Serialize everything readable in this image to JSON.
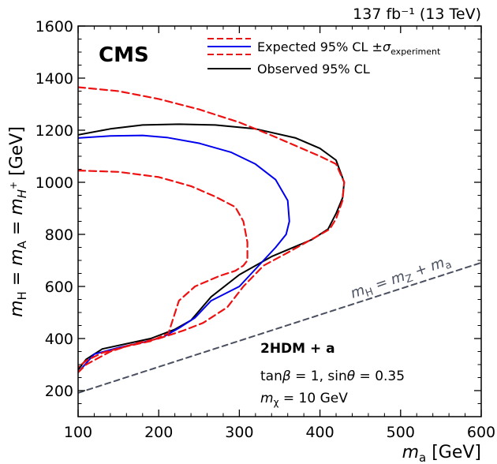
{
  "chart_data": {
    "type": "line",
    "top_label": "137 fb⁻¹ (13 TeV)",
    "experiment_label": "CMS",
    "xlabel": "mₐ [GeV]",
    "ylabel": "m_H = m_A = m_H⁺ [GeV]",
    "xlim": [
      100,
      600
    ],
    "ylim": [
      100,
      1600
    ],
    "xticks": [
      100,
      200,
      300,
      400,
      500,
      600
    ],
    "yticks": [
      200,
      400,
      600,
      800,
      1000,
      1200,
      1400,
      1600
    ],
    "legend_position": "top-right",
    "legend": {
      "expected": "Expected 95% CL ±σexperiment",
      "observed": "Observed 95% CL"
    },
    "annotations": {
      "model": "2HDM + a",
      "params_line1": "tanβ = 1, sinθ = 0.35",
      "params_line2": "mχ = 10 GeV",
      "diagonal_label": "m_H = m_Z + m_a"
    },
    "colors": {
      "observed": "#000000",
      "expected": "#0000ee",
      "band": "#ee1111",
      "diagonal": "#4a5060"
    },
    "series": [
      {
        "id": "observed",
        "style": "solid",
        "x": [
          100,
          140,
          180,
          225,
          270,
          320,
          370,
          400,
          420,
          430,
          428,
          420,
          410,
          390,
          340,
          300,
          265,
          240,
          220,
          190,
          160,
          130,
          110,
          100
        ],
        "y": [
          1182,
          1205,
          1220,
          1223,
          1220,
          1205,
          1170,
          1130,
          1085,
          1000,
          940,
          880,
          820,
          780,
          715,
          645,
          560,
          470,
          435,
          400,
          380,
          360,
          320,
          280
        ]
      },
      {
        "id": "expected",
        "style": "solid",
        "x": [
          100,
          140,
          180,
          210,
          250,
          290,
          320,
          345,
          360,
          362,
          358,
          345,
          300,
          265,
          245,
          225,
          205,
          180,
          150,
          120,
          100
        ],
        "y": [
          1170,
          1178,
          1180,
          1172,
          1150,
          1115,
          1070,
          1010,
          930,
          850,
          800,
          750,
          600,
          545,
          480,
          440,
          405,
          385,
          365,
          340,
          270
        ]
      },
      {
        "id": "expected_plus1sigma",
        "style": "dashed",
        "x": [
          100,
          150,
          200,
          250,
          300,
          340,
          370,
          400,
          420,
          430,
          428,
          420,
          412,
          395,
          360,
          330,
          305,
          285,
          255,
          230,
          200,
          170,
          140,
          110,
          100
        ],
        "y": [
          1365,
          1350,
          1320,
          1280,
          1230,
          1180,
          1140,
          1100,
          1070,
          1000,
          930,
          860,
          820,
          790,
          730,
          680,
          600,
          520,
          460,
          430,
          400,
          380,
          350,
          300,
          270
        ]
      },
      {
        "id": "expected_minus1sigma",
        "style": "dashed",
        "x": [
          100,
          150,
          200,
          240,
          270,
          295,
          305,
          310,
          310,
          305,
          295,
          275,
          245,
          225,
          212,
          190,
          160,
          130,
          110,
          100
        ],
        "y": [
          1045,
          1040,
          1020,
          985,
          945,
          905,
          850,
          770,
          700,
          680,
          660,
          640,
          600,
          545,
          420,
          390,
          370,
          345,
          315,
          290
        ]
      },
      {
        "id": "diagonal",
        "style": "dashed",
        "x": [
          100,
          600
        ],
        "y": [
          191.2,
          691.2
        ]
      }
    ]
  }
}
